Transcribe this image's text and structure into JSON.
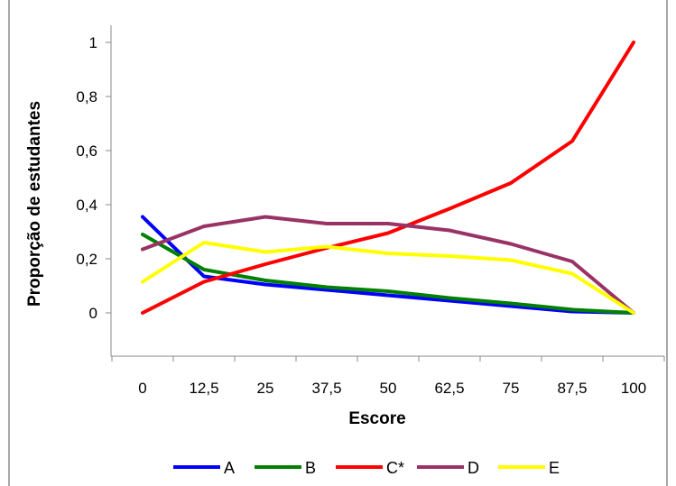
{
  "chart_data": {
    "type": "line",
    "title": "",
    "xlabel": "Escore",
    "ylabel": "Proporção de estudantes",
    "categories": [
      "0",
      "12,5",
      "25",
      "37,5",
      "50",
      "62,5",
      "75",
      "87,5",
      "100"
    ],
    "yticks": [
      "0",
      "0,2",
      "0,4",
      "0,6",
      "0,8",
      "1"
    ],
    "ylim": [
      0,
      1
    ],
    "grid": false,
    "legend_position": "bottom",
    "series": [
      {
        "name": "A",
        "color": "#0000ff",
        "values": [
          0.355,
          0.135,
          0.105,
          0.085,
          0.065,
          0.045,
          0.025,
          0.005,
          0.0
        ]
      },
      {
        "name": "B",
        "color": "#008000",
        "values": [
          0.29,
          0.16,
          0.12,
          0.095,
          0.08,
          0.055,
          0.035,
          0.012,
          0.0
        ]
      },
      {
        "name": "C*",
        "color": "#ff0000",
        "values": [
          0.0,
          0.115,
          0.18,
          0.24,
          0.295,
          0.385,
          0.48,
          0.635,
          1.0
        ]
      },
      {
        "name": "D",
        "color": "#993366",
        "values": [
          0.235,
          0.32,
          0.355,
          0.33,
          0.33,
          0.305,
          0.255,
          0.19,
          0.0
        ]
      },
      {
        "name": "E",
        "color": "#ffff00",
        "values": [
          0.115,
          0.26,
          0.225,
          0.245,
          0.22,
          0.21,
          0.195,
          0.145,
          0.0
        ]
      }
    ]
  }
}
